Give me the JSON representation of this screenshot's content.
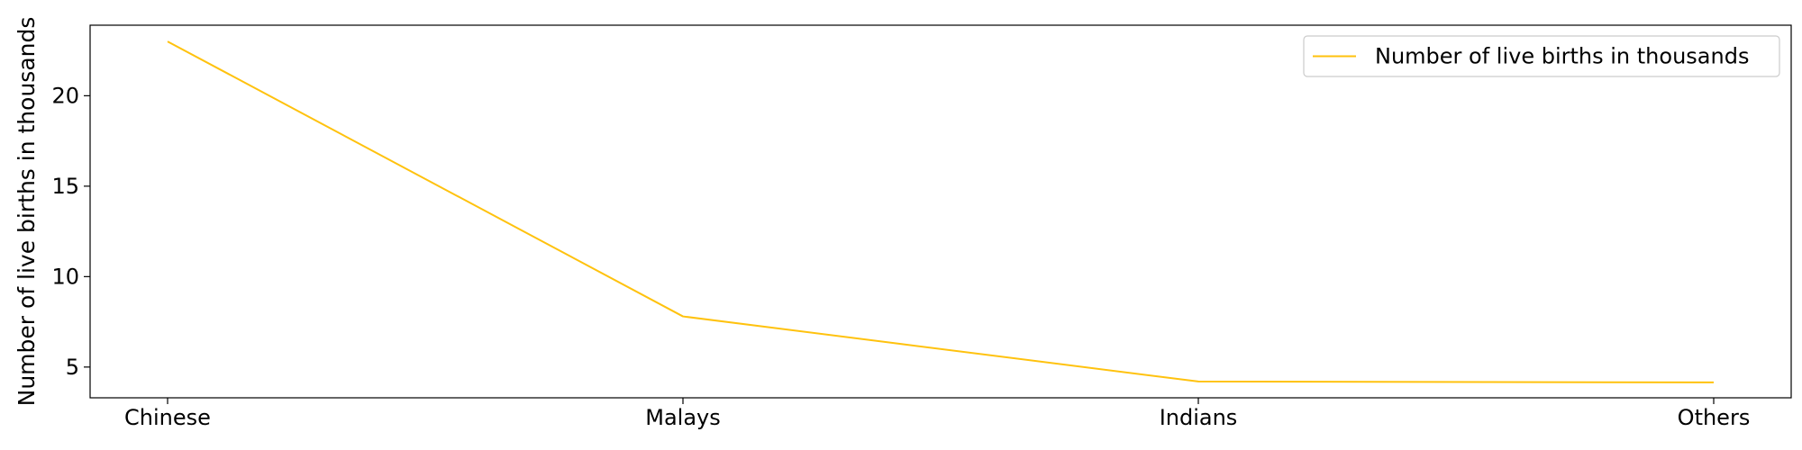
{
  "chart_data": {
    "type": "line",
    "title": "",
    "xlabel": "",
    "ylabel": "Number of live births in thousands",
    "categories": [
      "Chinese",
      "Malays",
      "Indians",
      "Others"
    ],
    "series": [
      {
        "name": "Number of live births in thousands",
        "color": "#ffc20e",
        "values": [
          23.0,
          7.8,
          4.2,
          4.15
        ]
      }
    ],
    "ylim": [
      3.3,
      23.9
    ],
    "yticks": [
      5,
      10,
      15,
      20
    ],
    "grid": false,
    "legend_position": "top-right"
  }
}
